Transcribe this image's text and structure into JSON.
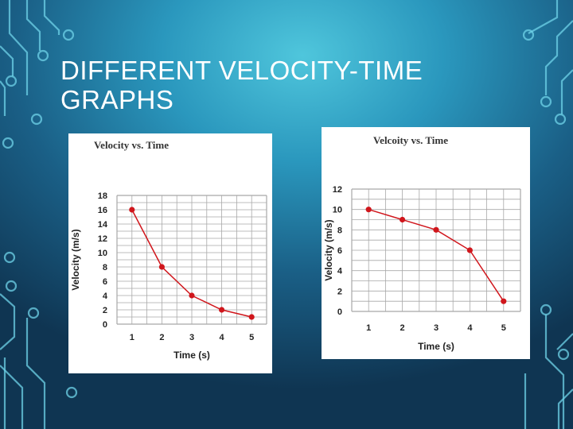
{
  "slide": {
    "title_line1": "DIFFERENT VELOCITY-TIME",
    "title_line2": "GRAPHS"
  },
  "colors": {
    "series": "#d0161c",
    "grid": "#a8a8a8",
    "background_light": "#4fc6dc",
    "background_dark": "#0f3552",
    "circuit_lines": "#6fd3e8"
  },
  "chart_data": [
    {
      "type": "line",
      "title": "Velocity vs. Time",
      "xlabel": "Time (s)",
      "ylabel": "Velocity (m/s)",
      "x": [
        1,
        2,
        3,
        4,
        5
      ],
      "y": [
        16,
        8,
        4,
        2,
        1
      ],
      "xticks": [
        "1",
        "2",
        "3",
        "4",
        "5"
      ],
      "yticks": [
        "0",
        "2",
        "4",
        "6",
        "8",
        "10",
        "12",
        "14",
        "16",
        "18"
      ],
      "xlim": [
        0.5,
        5.5
      ],
      "ylim": [
        0,
        18
      ],
      "grid": true,
      "legend": "none"
    },
    {
      "type": "line",
      "title": "Velcoity vs. Time",
      "xlabel": "Time (s)",
      "ylabel": "Velocity (m/s)",
      "x": [
        1,
        2,
        3,
        4,
        5
      ],
      "y": [
        10,
        9,
        8,
        6,
        1
      ],
      "xticks": [
        "1",
        "2",
        "3",
        "4",
        "5"
      ],
      "yticks": [
        "0",
        "2",
        "4",
        "6",
        "8",
        "10",
        "12"
      ],
      "xlim": [
        0.5,
        5.5
      ],
      "ylim": [
        0,
        12
      ],
      "grid": true,
      "legend": "none"
    }
  ]
}
